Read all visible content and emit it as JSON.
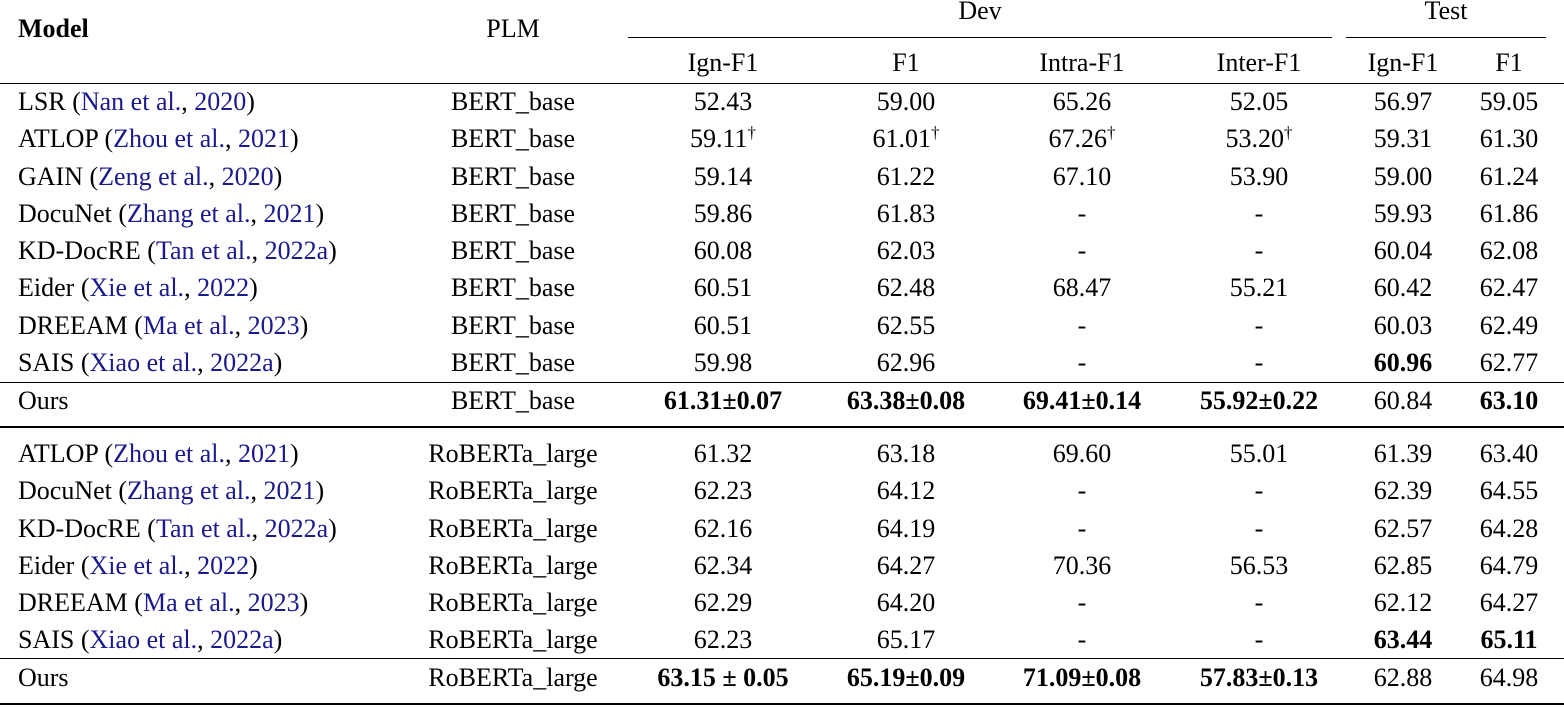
{
  "header": {
    "model": "Model",
    "plm": "PLM",
    "dev": "Dev",
    "test": "Test",
    "sub": [
      "Ign-F1",
      "F1",
      "Intra-F1",
      "Inter-F1",
      "Ign-F1",
      "F1"
    ]
  },
  "groups": [
    {
      "rows": [
        {
          "model": "LSR",
          "cite": "Nan et al.",
          "year": "2020",
          "plm": "BERT_base",
          "vals": [
            {
              "v": "52.43"
            },
            {
              "v": "59.00"
            },
            {
              "v": "65.26"
            },
            {
              "v": "52.05"
            },
            {
              "v": "56.97"
            },
            {
              "v": "59.05"
            }
          ]
        },
        {
          "model": "ATLOP",
          "cite": "Zhou et al.",
          "year": "2021",
          "plm": "BERT_base",
          "vals": [
            {
              "v": "59.11",
              "sup": "†"
            },
            {
              "v": "61.01",
              "sup": "†"
            },
            {
              "v": "67.26",
              "sup": "†"
            },
            {
              "v": "53.20",
              "sup": "†"
            },
            {
              "v": "59.31"
            },
            {
              "v": "61.30"
            }
          ]
        },
        {
          "model": "GAIN",
          "cite": "Zeng et al.",
          "year": "2020",
          "plm": "BERT_base",
          "vals": [
            {
              "v": "59.14"
            },
            {
              "v": "61.22"
            },
            {
              "v": "67.10"
            },
            {
              "v": "53.90"
            },
            {
              "v": "59.00"
            },
            {
              "v": "61.24"
            }
          ]
        },
        {
          "model": "DocuNet",
          "cite": "Zhang et al.",
          "year": "2021",
          "plm": "BERT_base",
          "vals": [
            {
              "v": "59.86"
            },
            {
              "v": "61.83"
            },
            {
              "v": "-"
            },
            {
              "v": "-"
            },
            {
              "v": "59.93"
            },
            {
              "v": "61.86"
            }
          ]
        },
        {
          "model": "KD-DocRE",
          "cite": "Tan et al.",
          "year": "2022a",
          "plm": "BERT_base",
          "vals": [
            {
              "v": "60.08"
            },
            {
              "v": "62.03"
            },
            {
              "v": "-"
            },
            {
              "v": "-"
            },
            {
              "v": "60.04"
            },
            {
              "v": "62.08"
            }
          ]
        },
        {
          "model": "Eider",
          "cite": "Xie et al.",
          "year": "2022",
          "plm": "BERT_base",
          "vals": [
            {
              "v": "60.51"
            },
            {
              "v": "62.48"
            },
            {
              "v": "68.47"
            },
            {
              "v": "55.21"
            },
            {
              "v": "60.42"
            },
            {
              "v": "62.47"
            }
          ]
        },
        {
          "model": "DREEAM",
          "cite": "Ma et al.",
          "year": "2023",
          "plm": "BERT_base",
          "vals": [
            {
              "v": "60.51"
            },
            {
              "v": "62.55"
            },
            {
              "v": "-"
            },
            {
              "v": "-"
            },
            {
              "v": "60.03"
            },
            {
              "v": "62.49"
            }
          ]
        },
        {
          "model": "SAIS",
          "cite": "Xiao et al.",
          "year": "2022a",
          "plm": "BERT_base",
          "vals": [
            {
              "v": "59.98"
            },
            {
              "v": "62.96"
            },
            {
              "v": "-"
            },
            {
              "v": "-"
            },
            {
              "v": "60.96",
              "bold": true
            },
            {
              "v": "62.77"
            }
          ]
        }
      ],
      "ours": {
        "model": "Ours",
        "plm": "BERT_base",
        "vals": [
          {
            "v": "61.31±0.07",
            "bold": true
          },
          {
            "v": "63.38±0.08",
            "bold": true
          },
          {
            "v": "69.41±0.14",
            "bold": true
          },
          {
            "v": "55.92±0.22",
            "bold": true
          },
          {
            "v": "60.84"
          },
          {
            "v": "63.10",
            "bold": true
          }
        ]
      }
    },
    {
      "rows": [
        {
          "model": "ATLOP",
          "cite": "Zhou et al.",
          "year": "2021",
          "plm": "RoBERTa_large",
          "vals": [
            {
              "v": "61.32"
            },
            {
              "v": "63.18"
            },
            {
              "v": "69.60"
            },
            {
              "v": "55.01"
            },
            {
              "v": "61.39"
            },
            {
              "v": "63.40"
            }
          ]
        },
        {
          "model": "DocuNet",
          "cite": "Zhang et al.",
          "year": "2021",
          "plm": "RoBERTa_large",
          "vals": [
            {
              "v": "62.23"
            },
            {
              "v": "64.12"
            },
            {
              "v": "-"
            },
            {
              "v": "-"
            },
            {
              "v": "62.39"
            },
            {
              "v": "64.55"
            }
          ]
        },
        {
          "model": "KD-DocRE",
          "cite": "Tan et al.",
          "year": "2022a",
          "plm": "RoBERTa_large",
          "vals": [
            {
              "v": "62.16"
            },
            {
              "v": "64.19"
            },
            {
              "v": "-"
            },
            {
              "v": "-"
            },
            {
              "v": "62.57"
            },
            {
              "v": "64.28"
            }
          ]
        },
        {
          "model": "Eider",
          "cite": "Xie et al.",
          "year": "2022",
          "plm": "RoBERTa_large",
          "vals": [
            {
              "v": "62.34"
            },
            {
              "v": "64.27"
            },
            {
              "v": "70.36"
            },
            {
              "v": "56.53"
            },
            {
              "v": "62.85"
            },
            {
              "v": "64.79"
            }
          ]
        },
        {
          "model": "DREEAM",
          "cite": "Ma et al.",
          "year": "2023",
          "plm": "RoBERTa_large",
          "vals": [
            {
              "v": "62.29"
            },
            {
              "v": "64.20"
            },
            {
              "v": "-"
            },
            {
              "v": "-"
            },
            {
              "v": "62.12"
            },
            {
              "v": "64.27"
            }
          ]
        },
        {
          "model": "SAIS",
          "cite": "Xiao et al.",
          "year": "2022a",
          "plm": "RoBERTa_large",
          "vals": [
            {
              "v": "62.23"
            },
            {
              "v": "65.17"
            },
            {
              "v": "-"
            },
            {
              "v": "-"
            },
            {
              "v": "63.44",
              "bold": true
            },
            {
              "v": "65.11",
              "bold": true
            }
          ]
        }
      ],
      "ours": {
        "model": "Ours",
        "plm": "RoBERTa_large",
        "vals": [
          {
            "v": "63.15 ± 0.05",
            "bold": true
          },
          {
            "v": "65.19±0.09",
            "bold": true
          },
          {
            "v": "71.09±0.08",
            "bold": true
          },
          {
            "v": "57.83±0.13",
            "bold": true
          },
          {
            "v": "62.88"
          },
          {
            "v": "64.98"
          }
        ]
      }
    }
  ]
}
